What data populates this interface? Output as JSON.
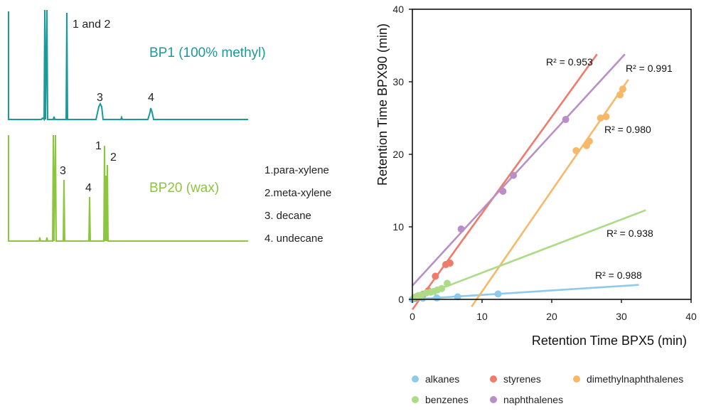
{
  "chromatograms": {
    "bp1": {
      "name": "BP1 (100% methyl)",
      "color": "#1a9a9a",
      "peak_labels": [
        "1 and 2",
        "3",
        "4"
      ]
    },
    "bp20": {
      "name": "BP20 (wax)",
      "color": "#8cc63f",
      "peak_labels": [
        "3",
        "4",
        "1",
        "2"
      ]
    },
    "key": [
      "1.para-xylene",
      "2.meta-xylene",
      "3. decane",
      "4. undecane"
    ]
  },
  "chart_data": {
    "type": "scatter",
    "xlabel": "Retention Time BPX5 (min)",
    "ylabel": "Retention Time BPX90 (min)",
    "xlim": [
      0,
      40
    ],
    "ylim": [
      0,
      40
    ],
    "xticks": [
      "0",
      "10",
      "20",
      "30",
      "40"
    ],
    "yticks": [
      "0",
      "10",
      "20",
      "30",
      "40"
    ],
    "grid": false,
    "legend_position": "bottom",
    "series": [
      {
        "name": "alkanes",
        "color": "#8ecbea",
        "points": [
          [
            0,
            0
          ],
          [
            0.5,
            0.1
          ],
          [
            1.5,
            0.15
          ],
          [
            3.5,
            0.2
          ],
          [
            6.5,
            0.35
          ],
          [
            12.3,
            0.75
          ]
        ],
        "trendline": [
          [
            0,
            0
          ],
          [
            32.5,
            2.0
          ]
        ],
        "r2": "R² = 0.988"
      },
      {
        "name": "styrenes",
        "color": "#f07b6c",
        "points": [
          [
            0.5,
            0.2
          ],
          [
            1.5,
            0.7
          ],
          [
            2.3,
            1.2
          ],
          [
            3.3,
            3.2
          ],
          [
            4.8,
            4.8
          ],
          [
            5.4,
            5.0
          ]
        ],
        "trendline": [
          [
            0,
            -1.4
          ],
          [
            26.5,
            33.8
          ]
        ],
        "r2": "R² = 0.953"
      },
      {
        "name": "dimethylnaphthalenes",
        "color": "#f8b86a",
        "points": [
          [
            23.5,
            20.5
          ],
          [
            25.0,
            21.2
          ],
          [
            25.4,
            21.8
          ],
          [
            27.0,
            25.0
          ],
          [
            27.8,
            25.2
          ],
          [
            29.8,
            28.2
          ],
          [
            30.2,
            29.0
          ]
        ],
        "trendline": [
          [
            8.5,
            -1.0
          ],
          [
            31.0,
            30.3
          ]
        ],
        "r2": "R² = 0.980"
      },
      {
        "name": "benzenes",
        "color": "#addb87",
        "points": [
          [
            0.3,
            0.3
          ],
          [
            0.8,
            0.5
          ],
          [
            1.3,
            0.6
          ],
          [
            2.0,
            0.9
          ],
          [
            2.6,
            1.0
          ],
          [
            3.1,
            1.1
          ],
          [
            3.6,
            1.3
          ],
          [
            4.2,
            1.5
          ],
          [
            5.0,
            2.2
          ]
        ],
        "trendline": [
          [
            0,
            0.0
          ],
          [
            33.5,
            12.3
          ]
        ],
        "r2": "R² = 0.938"
      },
      {
        "name": "naphthalenes",
        "color": "#b98fc6",
        "points": [
          [
            7.0,
            9.7
          ],
          [
            13.0,
            14.9
          ],
          [
            14.5,
            17.1
          ],
          [
            22.0,
            24.8
          ]
        ],
        "trendline": [
          [
            0,
            1.9
          ],
          [
            30.5,
            33.8
          ]
        ],
        "r2": "R² = 0.991"
      }
    ]
  }
}
